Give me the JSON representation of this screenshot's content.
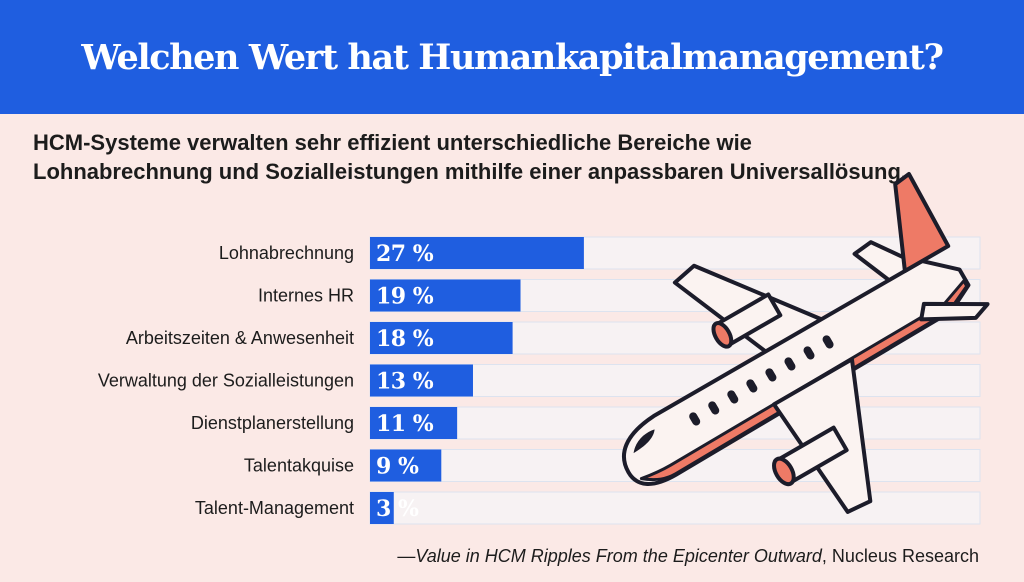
{
  "header": {
    "title": "Welchen Wert hat Humankapitalmanagement?"
  },
  "subtitle": "HCM-Systeme verwalten sehr effizient unterschiedliche Bereiche wie Lohnabrechnung und Sozialleistungen mithilfe einer anpassbaren Universallösung.",
  "chart_data": {
    "type": "bar",
    "orientation": "horizontal",
    "categories": [
      "Lohnabrechnung",
      "Internes HR",
      "Arbeitszeiten & Anwesenheit",
      "Verwaltung der Sozialleistungen",
      "Dienstplanerstellung",
      "Talentakquise",
      "Talent-Management"
    ],
    "values": [
      27,
      19,
      18,
      13,
      11,
      9,
      3
    ],
    "value_labels": [
      "27 %",
      "19 %",
      "18 %",
      "13 %",
      "11 %",
      "9 %",
      "3 %"
    ],
    "xlim": [
      0,
      77
    ],
    "grid": false,
    "legend": "none",
    "colors": {
      "bar": "#1f5ee0",
      "track": "#f7f2f3",
      "track_border": "#dde3ef"
    }
  },
  "illustration": {
    "icon": "airplane-illustration",
    "colors": {
      "body": "#fbf3f1",
      "accent": "#ee7a66",
      "outline": "#1c1c2a"
    }
  },
  "footer": {
    "dash": "—",
    "source_title": "Value in HCM Ripples From the Epicenter Outward",
    "source_sep": ", ",
    "source_org": "Nucleus Research"
  }
}
